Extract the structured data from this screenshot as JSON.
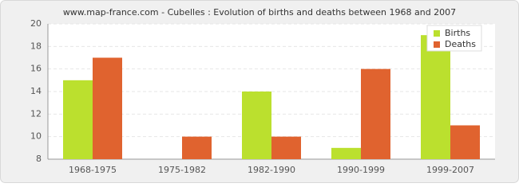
{
  "chart_data": {
    "type": "bar",
    "title": "www.map-france.com - Cubelles : Evolution of births and deaths between 1968 and 2007",
    "categories": [
      "1968-1975",
      "1975-1982",
      "1982-1990",
      "1990-1999",
      "1999-2007"
    ],
    "series": [
      {
        "name": "Births",
        "color": "#bbe02e",
        "values": [
          15,
          8,
          14,
          9,
          19
        ]
      },
      {
        "name": "Deaths",
        "color": "#e0632f",
        "values": [
          17,
          10,
          10,
          16,
          11
        ]
      }
    ],
    "ylim": [
      8,
      20
    ],
    "yticks": [
      8,
      10,
      12,
      14,
      16,
      18,
      20
    ],
    "grid": true,
    "legend": "top-right"
  }
}
